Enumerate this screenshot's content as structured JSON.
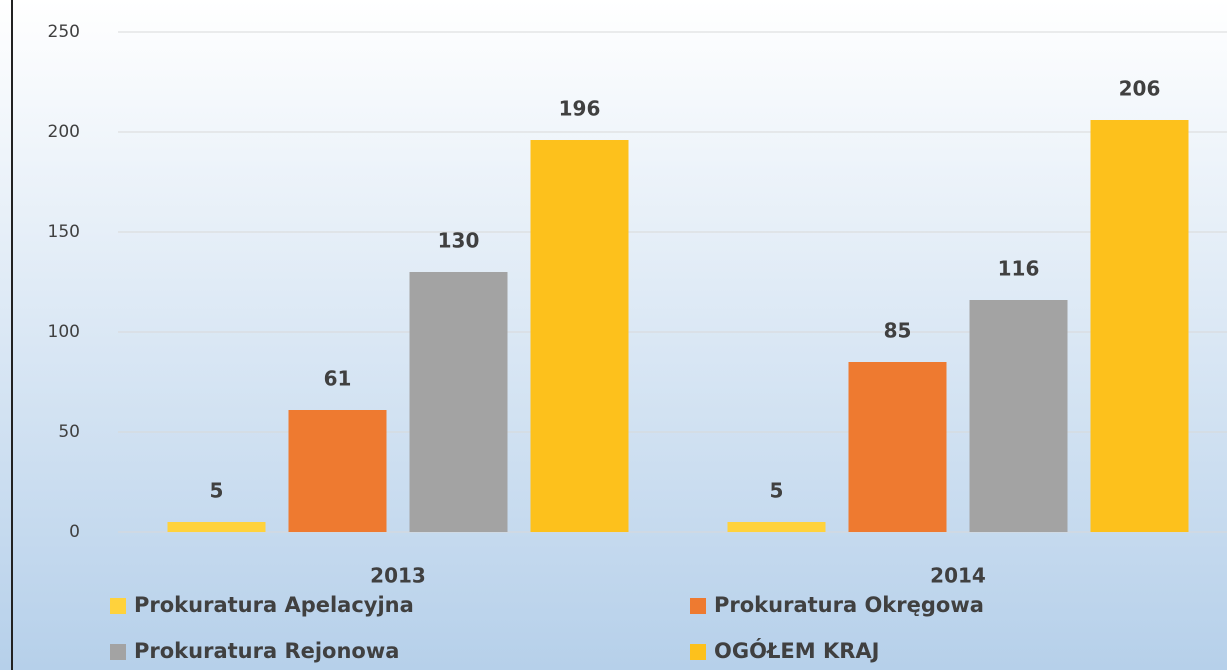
{
  "chart_data": {
    "type": "bar",
    "categories": [
      "2013",
      "2014"
    ],
    "series": [
      {
        "name": "Prokuratura Apelacyjna",
        "color": "#ffd23c",
        "values": [
          5,
          5
        ]
      },
      {
        "name": "Prokuratura Okręgowa",
        "color": "#ee7a30",
        "values": [
          61,
          85
        ]
      },
      {
        "name": "Prokuratura Rejonowa",
        "color": "#a3a3a3",
        "values": [
          130,
          116
        ]
      },
      {
        "name": "OGÓŁEM KRAJ",
        "color": "#fdc11c",
        "values": [
          196,
          206
        ]
      }
    ],
    "ylim": [
      0,
      250
    ],
    "yticks": [
      0,
      50,
      100,
      150,
      200,
      250
    ],
    "grid": true,
    "legend": "bottom"
  }
}
